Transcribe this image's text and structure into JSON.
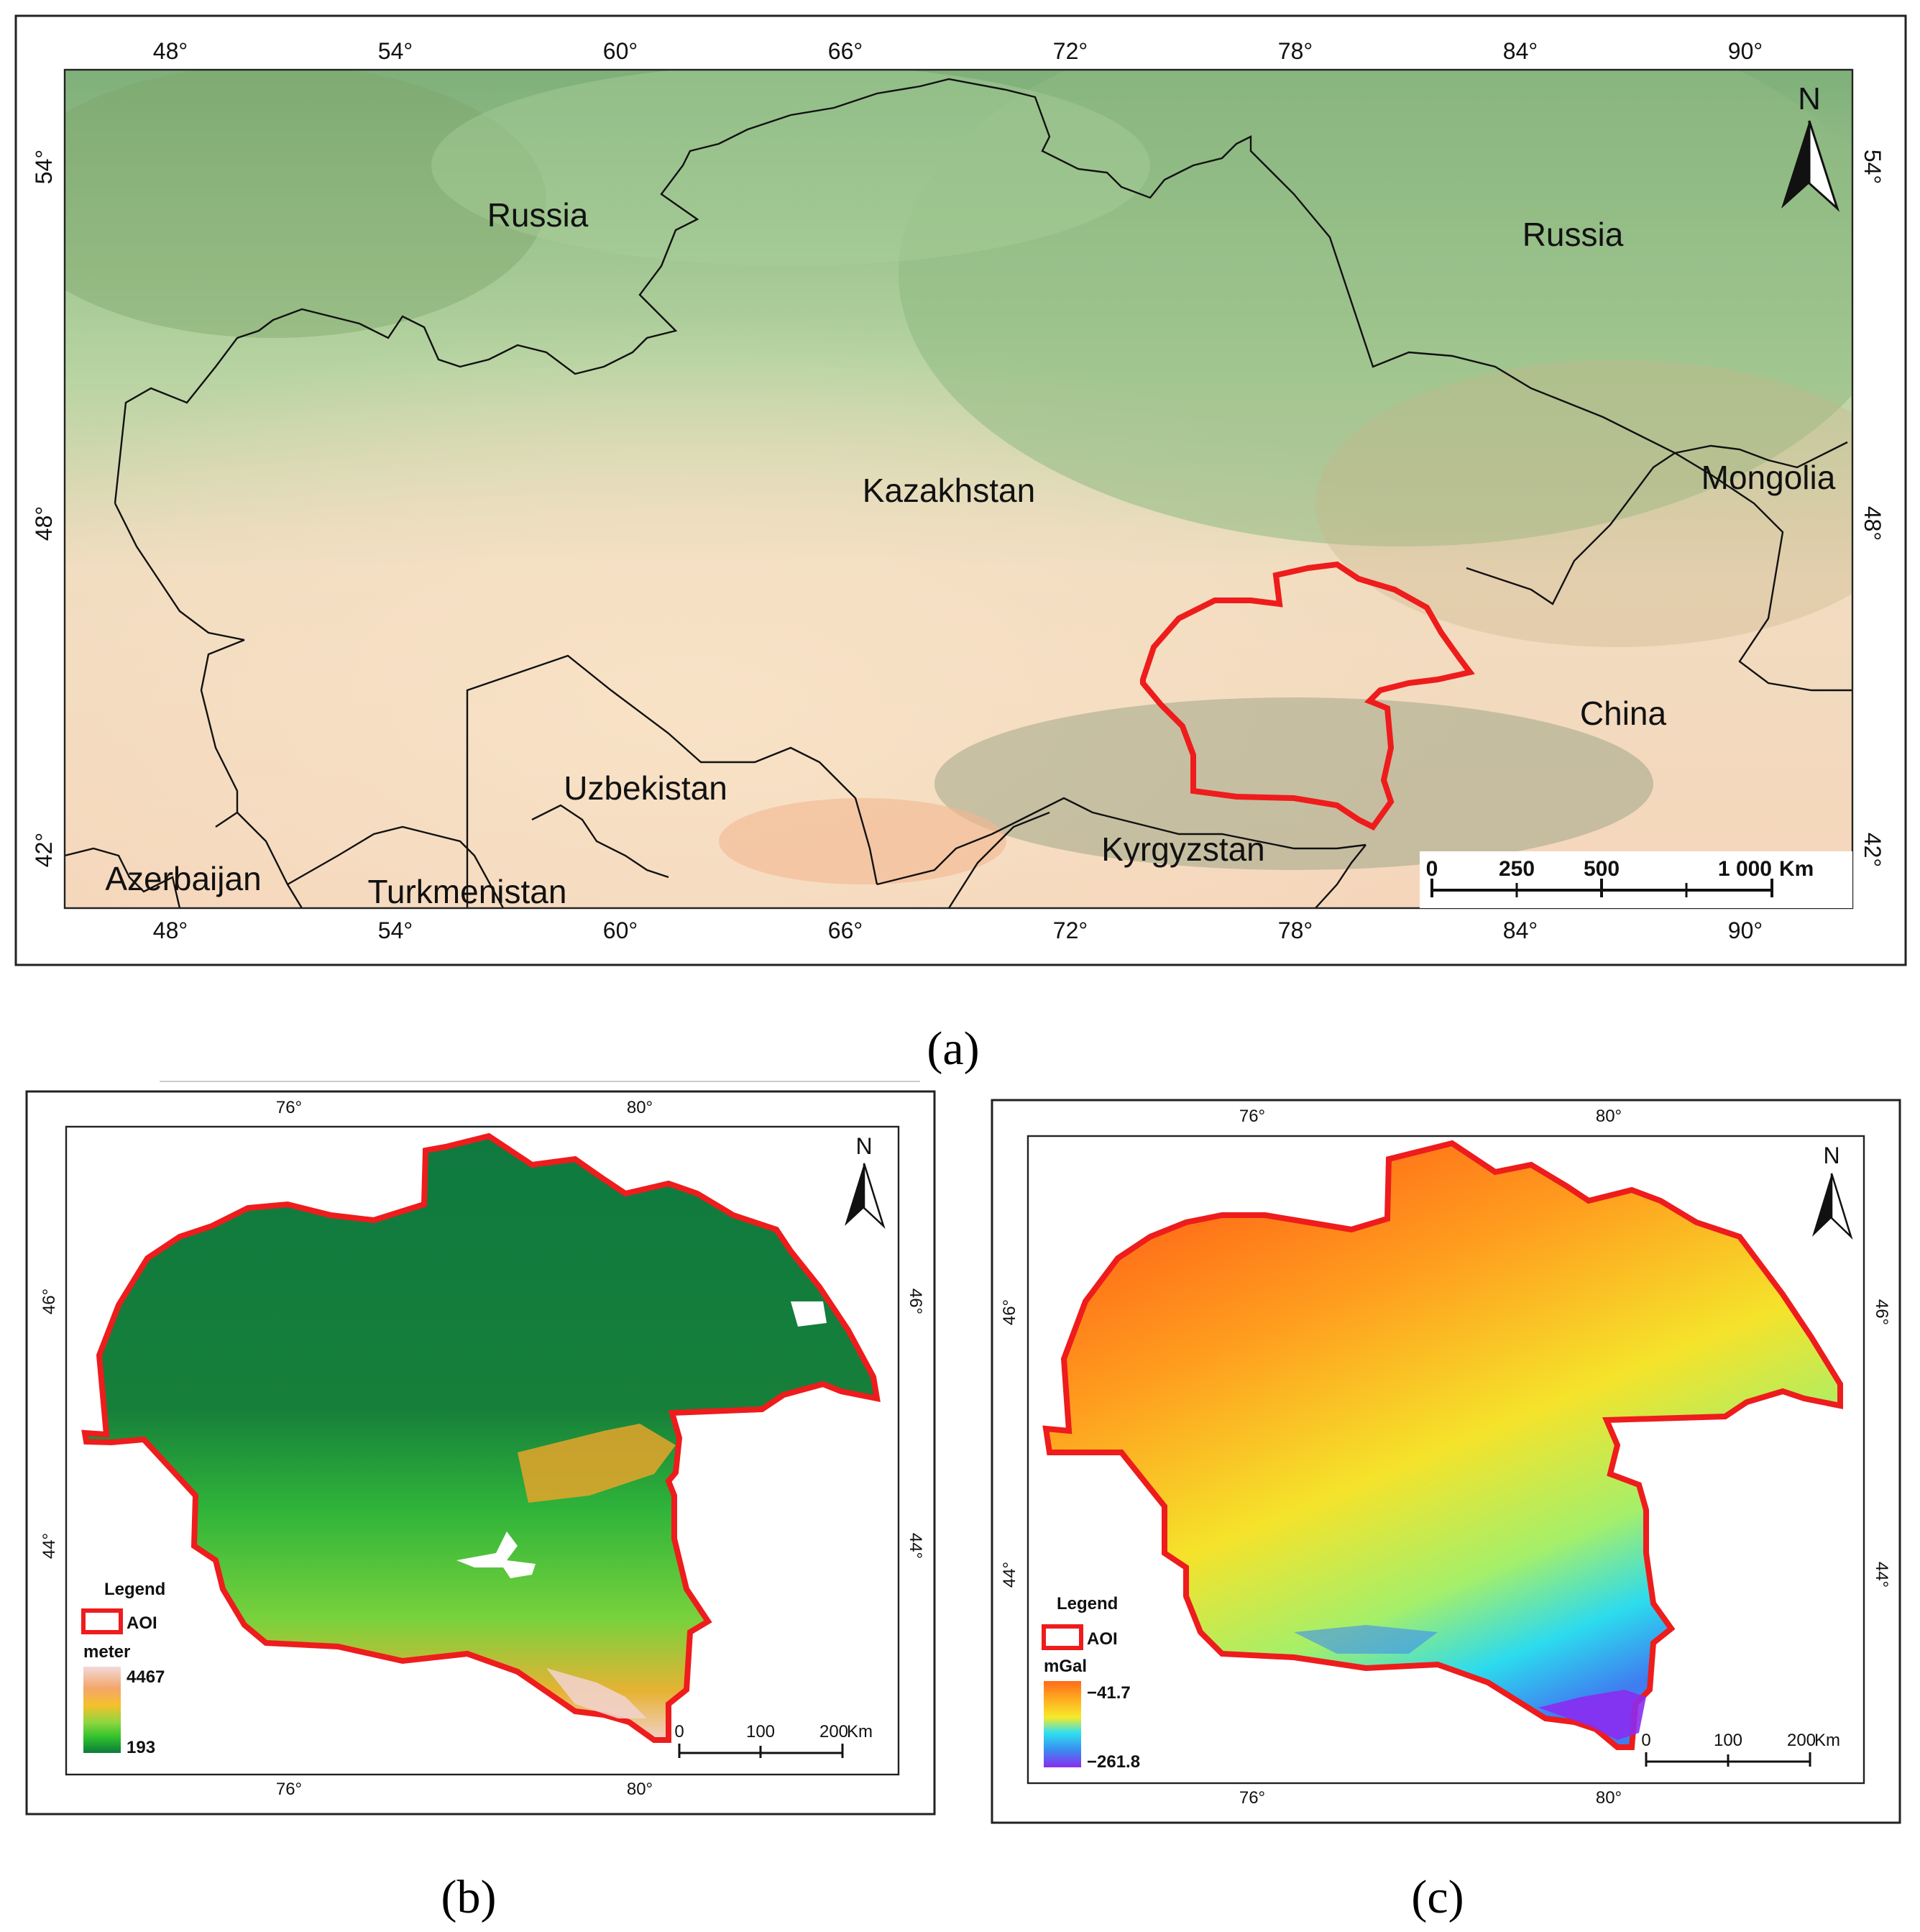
{
  "panel_a": {
    "caption": "(a)",
    "lon_labels": [
      "48°",
      "54°",
      "60°",
      "66°",
      "72°",
      "78°",
      "84°",
      "90°"
    ],
    "lat_labels": [
      "54°",
      "48°",
      "42°"
    ],
    "countries": {
      "russia_west": "Russia",
      "russia_east": "Russia",
      "kazakhstan": "Kazakhstan",
      "mongolia": "Mongolia",
      "china": "China",
      "uzbekistan": "Uzbekistan",
      "kyrgyzstan": "Kyrgyzstan",
      "azerbaijan": "Azerbaijan",
      "turkmenistan": "Turkmenistan"
    },
    "north_label": "N",
    "scale": {
      "t0": "0",
      "t1": "250",
      "t2": "500",
      "t3": "1 000",
      "unit": "Km"
    }
  },
  "panel_b": {
    "caption": "(b)",
    "lon_labels": [
      "76°",
      "80°"
    ],
    "lat_labels": [
      "46°",
      "44°"
    ],
    "north_label": "N",
    "legend": {
      "title": "Legend",
      "aoi": "AOI",
      "unit": "meter",
      "max": "4467",
      "min": "193",
      "ramp": [
        "#f2d9d9",
        "#f3b27a",
        "#f5a623",
        "#e6d94d",
        "#8cd63f",
        "#2fc12c",
        "#0d7a3c"
      ]
    },
    "scale": {
      "t0": "0",
      "t1": "100",
      "t2": "200",
      "unit": "Km"
    }
  },
  "panel_c": {
    "caption": "(c)",
    "lon_labels": [
      "76°",
      "80°"
    ],
    "lat_labels": [
      "46°",
      "44°"
    ],
    "north_label": "N",
    "legend": {
      "title": "Legend",
      "aoi": "AOI",
      "unit": "mGal",
      "max": "−41.7",
      "min": "−261.8",
      "ramp": [
        "#ff6a1a",
        "#ffb020",
        "#f6ea2a",
        "#9df07a",
        "#30e0f0",
        "#3a8cf0",
        "#8a2cf0"
      ]
    },
    "scale": {
      "t0": "0",
      "t1": "100",
      "t2": "200",
      "unit": "Km"
    }
  },
  "colors": {
    "aoi": "#ee1c1c",
    "border": "#111111"
  }
}
